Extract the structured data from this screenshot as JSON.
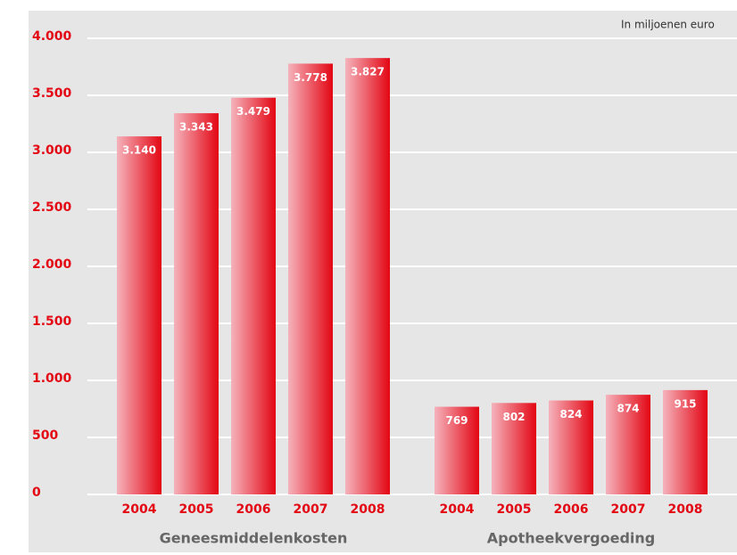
{
  "chart_data": {
    "type": "bar",
    "note": "In miljoenen euro",
    "color": "#e30613",
    "label_color": "#e30613",
    "grid": true,
    "ylim": [
      0,
      4000
    ],
    "yticks": [
      0,
      500,
      {
        "value": 1000,
        "label": "1.000"
      },
      {
        "value": 1500,
        "label": "1.500"
      },
      {
        "value": 2000,
        "label": "2.000"
      },
      {
        "value": 2500,
        "label": "2.500"
      },
      {
        "value": 3000,
        "label": "3.000"
      },
      {
        "value": 3500,
        "label": "3.500"
      },
      {
        "value": 4000,
        "label": "4.000"
      }
    ],
    "groups": [
      {
        "name": "Geneesmiddelenkosten",
        "categories": [
          "2004",
          "2005",
          "2006",
          "2007",
          "2008"
        ],
        "values": [
          3140,
          3343,
          3479,
          3778,
          3827
        ],
        "value_labels": [
          "3.140",
          "3.343",
          "3.479",
          "3.778",
          "3.827"
        ]
      },
      {
        "name": "Apotheekvergoeding",
        "categories": [
          "2004",
          "2005",
          "2006",
          "2007",
          "2008"
        ],
        "values": [
          769,
          802,
          824,
          874,
          915
        ]
      }
    ]
  }
}
